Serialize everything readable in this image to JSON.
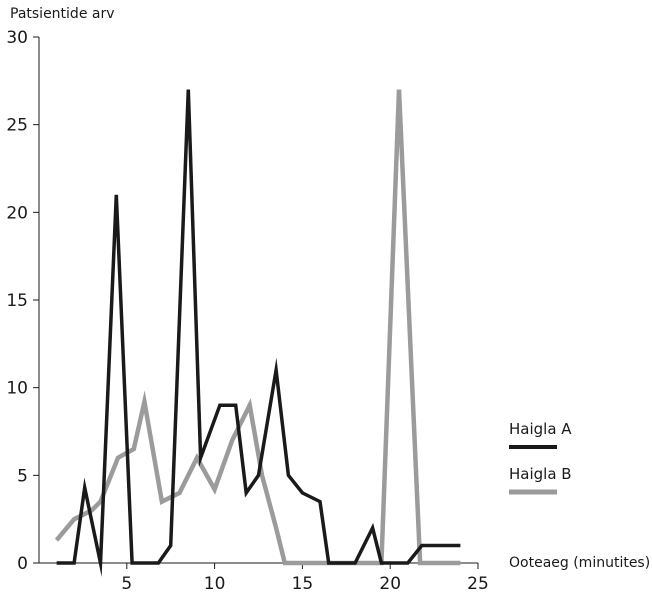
{
  "chart_data": {
    "type": "line",
    "title": "",
    "ylabel": "Patsientide arv",
    "xlabel": "Ooteaeg (minutites)",
    "xlim": [
      0,
      25
    ],
    "ylim": [
      0,
      30
    ],
    "xticks": [
      5,
      10,
      15,
      20,
      25
    ],
    "yticks": [
      0,
      5,
      10,
      15,
      20,
      25,
      30
    ],
    "grid": false,
    "legend_position": "right",
    "series": [
      {
        "name": "Haigla A",
        "color": "#1a1a1a",
        "x": [
          1,
          2,
          2.6,
          3.5,
          4.4,
          5.3,
          6.0,
          6.8,
          7.5,
          8.5,
          9.2,
          10.3,
          11.2,
          11.8,
          12.5,
          13.5,
          14.2,
          15.0,
          16.0,
          16.5,
          17.0,
          18.0,
          19.0,
          19.5,
          20.5,
          21.0,
          21.8,
          24.0
        ],
        "y": [
          0,
          0,
          4.3,
          0,
          21,
          0,
          0,
          0,
          1,
          27,
          6,
          9,
          9,
          4,
          5,
          11,
          5,
          4,
          3.5,
          0,
          0,
          0,
          2,
          0,
          0,
          0,
          1,
          1
        ]
      },
      {
        "name": "Haigla B",
        "color": "#9b9b9b",
        "x": [
          1,
          2,
          3,
          3.5,
          4.5,
          5.4,
          6.0,
          7.0,
          8.0,
          9.0,
          10.0,
          11.0,
          12.0,
          12.7,
          13.5,
          14.0,
          15.0,
          19.5,
          20.5,
          21.7,
          24.0
        ],
        "y": [
          1.3,
          2.5,
          3,
          3.5,
          6,
          6.5,
          9.2,
          3.5,
          4,
          6,
          4.2,
          7,
          9,
          5,
          2,
          0,
          0,
          0,
          27,
          0,
          0
        ]
      }
    ]
  }
}
